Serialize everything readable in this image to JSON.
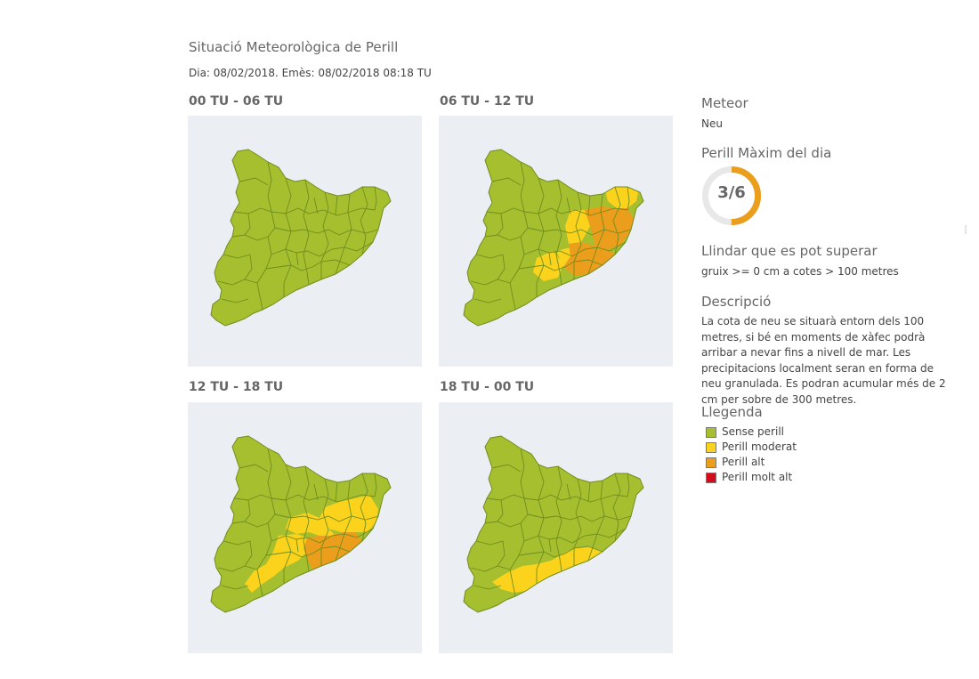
{
  "header": {
    "title": "Situació Meteorològica de Perill",
    "issued": "Dia: 08/02/2018. Emès: 08/02/2018 08:18 TU"
  },
  "colors": {
    "none": "#a6bf2f",
    "moderate": "#fbd31c",
    "high": "#eb9d1c",
    "very_high": "#d30c1c",
    "border": "#6f8d1f",
    "map_background": "#ebeef2",
    "gauge_track": "#e8e8e8",
    "gauge_fill": "#eb9d1c"
  },
  "periods": [
    {
      "label": "00 TU - 06 TU",
      "moderate_zones": 0,
      "high_zones": 0
    },
    {
      "label": "06 TU - 12 TU",
      "moderate_zones": 6,
      "high_zones": 6
    },
    {
      "label": "12 TU - 18 TU",
      "moderate_zones": 10,
      "high_zones": 4
    },
    {
      "label": "18 TU - 00 TU",
      "moderate_zones": 4,
      "high_zones": 0
    }
  ],
  "sidebar": {
    "meteor_heading": "Meteor",
    "meteor_value": "Neu",
    "max_danger_heading": "Perill Màxim del dia",
    "max_danger_value": "3/6",
    "max_danger_level": 3,
    "max_danger_scale": 6,
    "threshold_heading": "Llindar que es pot superar",
    "threshold_value": "gruix >= 0 cm a cotes > 100 metres",
    "description_heading": "Descripció",
    "description_text": "La cota de neu se situarà entorn dels 100 metres, si bé en moments de xàfec podrà arribar a nevar fins a nivell de mar. Les precipitacions localment seran en forma de neu granulada. Es podran acumular més de 2 cm per sobre de 300 metres."
  },
  "legend": {
    "heading": "Llegenda",
    "items": [
      {
        "label": "Sense perill",
        "color": "#a6bf2f"
      },
      {
        "label": "Perill moderat",
        "color": "#fbd31c"
      },
      {
        "label": "Perill alt",
        "color": "#eb9d1c"
      },
      {
        "label": "Perill molt alt",
        "color": "#d30c1c"
      }
    ]
  }
}
